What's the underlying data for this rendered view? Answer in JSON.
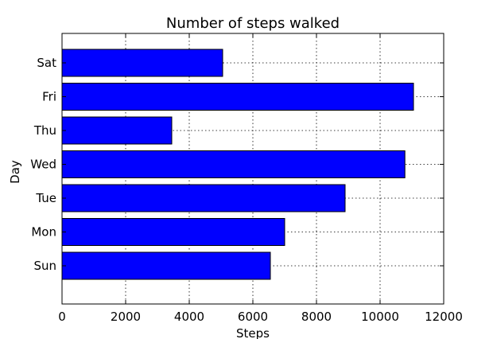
{
  "chart_data": {
    "type": "bar",
    "orientation": "horizontal",
    "title": "Number of steps walked",
    "xlabel": "Steps",
    "ylabel": "Day",
    "categories": [
      "Sun",
      "Mon",
      "Tue",
      "Wed",
      "Thu",
      "Fri",
      "Sat"
    ],
    "values": [
      6550,
      7000,
      8900,
      10780,
      3450,
      11050,
      5050
    ],
    "xlim": [
      0,
      12000
    ],
    "xticks": [
      0,
      2000,
      4000,
      6000,
      8000,
      10000,
      12000
    ],
    "grid": true,
    "bar_color": "#0000ff"
  }
}
